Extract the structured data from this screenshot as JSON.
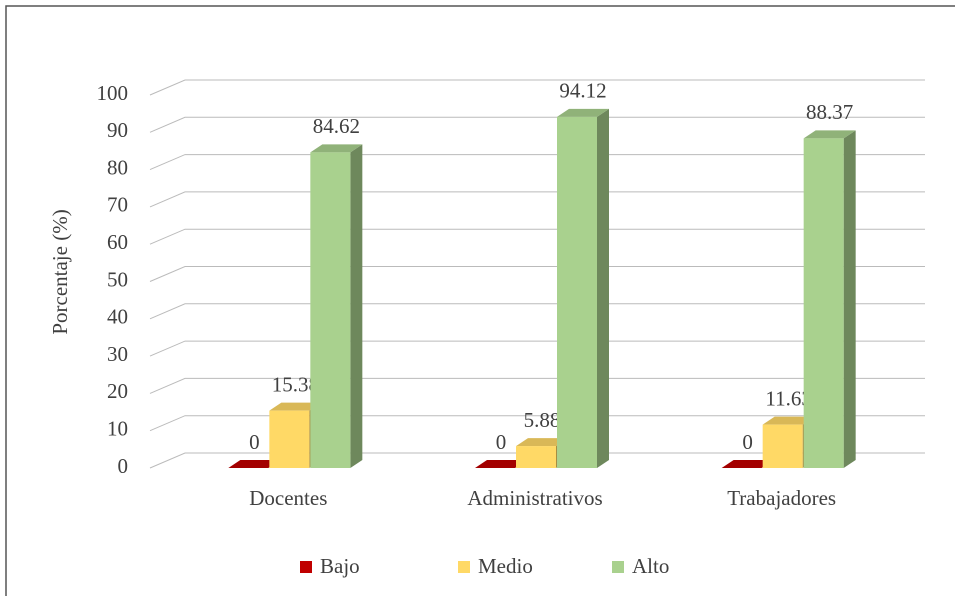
{
  "chart_data": {
    "type": "bar3d",
    "y_label": "Porcentaje (%)",
    "categories": [
      "Docentes",
      "Administrativos",
      "Trabajadores"
    ],
    "series": [
      {
        "name": "Bajo",
        "color": "#c00000",
        "values": [
          0,
          0,
          0
        ]
      },
      {
        "name": "Medio",
        "color": "#ffd966",
        "values": [
          15.38,
          5.88,
          11.63
        ]
      },
      {
        "name": "Alto",
        "color": "#a9d18e",
        "values": [
          84.62,
          94.12,
          88.37
        ]
      }
    ],
    "ylim": [
      0,
      100
    ],
    "yticks": [
      0,
      10,
      20,
      30,
      40,
      50,
      60,
      70,
      80,
      90,
      100
    ],
    "grid": true,
    "legend": "bottom"
  }
}
